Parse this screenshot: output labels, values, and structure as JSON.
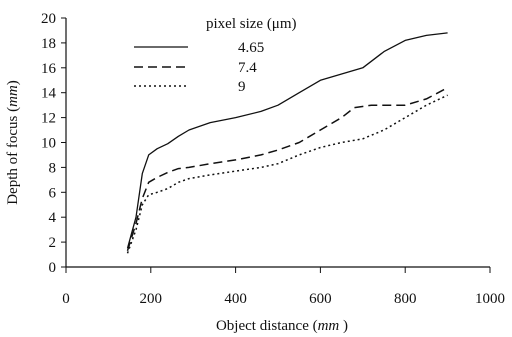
{
  "chart_data": {
    "type": "line",
    "xlabel_prefix": "Object distance (",
    "xlabel_unit": "mm",
    "xlabel_suffix": " )",
    "ylabel_prefix": "Depth of focus (",
    "ylabel_unit": "mm",
    "ylabel_suffix": ")",
    "xlim": [
      0,
      1000
    ],
    "ylim": [
      0,
      20
    ],
    "xticks": [
      "0",
      "200",
      "400",
      "600",
      "800",
      "1000"
    ],
    "yticks": [
      "0",
      "2",
      "4",
      "6",
      "8",
      "10",
      "12",
      "14",
      "16",
      "18",
      "20"
    ],
    "grid": false,
    "legend_title": "pixel size (μm)",
    "legend_position": "top-center",
    "series": [
      {
        "name": "4.65",
        "style": "solid",
        "x": [
          145,
          165,
          180,
          195,
          215,
          240,
          265,
          290,
          340,
          400,
          460,
          500,
          550,
          600,
          650,
          700,
          750,
          800,
          850,
          900
        ],
        "y": [
          1.5,
          4.0,
          7.5,
          9.0,
          9.5,
          9.9,
          10.5,
          11.0,
          11.6,
          12.0,
          12.5,
          13.0,
          14.0,
          15.0,
          15.5,
          16.0,
          17.3,
          18.2,
          18.6,
          18.8
        ]
      },
      {
        "name": "7.4",
        "style": "dashed",
        "x": [
          145,
          165,
          180,
          195,
          215,
          240,
          265,
          290,
          340,
          400,
          460,
          500,
          550,
          600,
          650,
          680,
          720,
          800,
          850,
          900
        ],
        "y": [
          1.3,
          3.5,
          5.5,
          6.8,
          7.2,
          7.6,
          7.9,
          8.0,
          8.3,
          8.6,
          9.0,
          9.4,
          10.0,
          11.0,
          12.0,
          12.8,
          13.0,
          13.0,
          13.5,
          14.4
        ]
      },
      {
        "name": "9",
        "style": "dotted",
        "x": [
          145,
          165,
          180,
          195,
          215,
          240,
          265,
          290,
          340,
          400,
          460,
          500,
          550,
          600,
          650,
          700,
          750,
          800,
          850,
          900
        ],
        "y": [
          1.1,
          3.0,
          5.0,
          5.8,
          6.0,
          6.3,
          6.8,
          7.1,
          7.4,
          7.7,
          8.0,
          8.3,
          9.0,
          9.6,
          10.0,
          10.3,
          11.0,
          12.0,
          13.0,
          13.8
        ]
      }
    ]
  }
}
